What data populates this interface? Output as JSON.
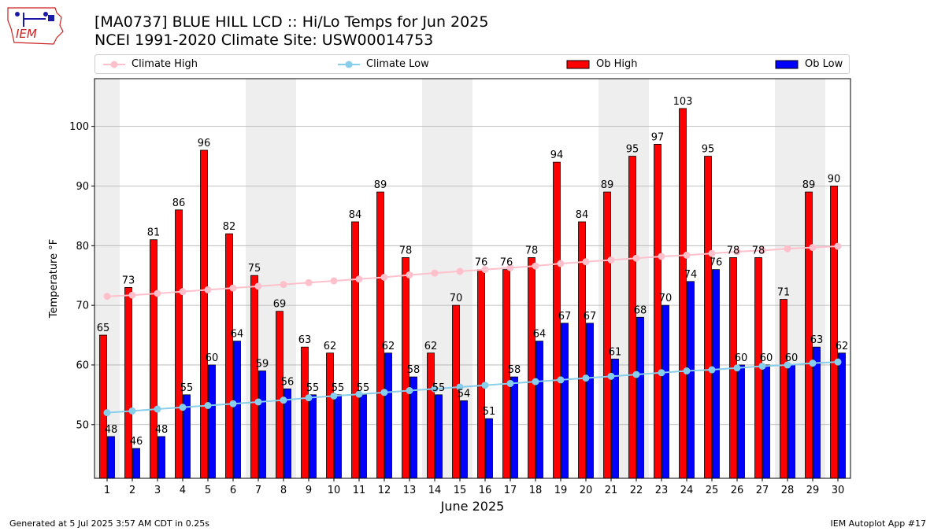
{
  "header": {
    "title_line1": "[MA0737] BLUE HILL LCD :: Hi/Lo Temps for Jun 2025",
    "title_line2": "NCEI 1991-2020 Climate Site: USW00014753"
  },
  "logo": {
    "text": "IEM"
  },
  "footer": {
    "generated": "Generated at 5 Jul 2025 3:57 AM CDT in 0.25s",
    "app": "IEM Autoplot App #17"
  },
  "legend": {
    "climate_high": "Climate High",
    "climate_low": "Climate Low",
    "ob_high": "Ob High",
    "ob_low": "Ob Low"
  },
  "colors": {
    "ob_high": "#ff0000",
    "ob_low": "#0000ff",
    "climate_high": "#ffc0cb",
    "climate_low": "#87ceeb",
    "weekend_band": "#eeeeee",
    "grid": "#b0b0b0"
  },
  "chart_data": {
    "type": "bar",
    "xlabel": "June 2025",
    "ylabel": "Temperature °F",
    "ylim": [
      41,
      108
    ],
    "yticks": [
      50,
      60,
      70,
      80,
      90,
      100
    ],
    "grid": "horizontal",
    "legend_position": "top",
    "categories": [
      "1",
      "2",
      "3",
      "4",
      "5",
      "6",
      "7",
      "8",
      "9",
      "10",
      "11",
      "12",
      "13",
      "14",
      "15",
      "16",
      "17",
      "18",
      "19",
      "20",
      "21",
      "22",
      "23",
      "24",
      "25",
      "26",
      "27",
      "28",
      "29",
      "30"
    ],
    "series": [
      {
        "name": "Ob High",
        "kind": "bar",
        "values": [
          65,
          73,
          81,
          86,
          96,
          82,
          75,
          69,
          63,
          62,
          84,
          89,
          78,
          62,
          70,
          76,
          76,
          78,
          94,
          84,
          89,
          95,
          97,
          103,
          95,
          78,
          78,
          71,
          89,
          90
        ]
      },
      {
        "name": "Ob Low",
        "kind": "bar",
        "values": [
          48,
          46,
          48,
          55,
          60,
          64,
          59,
          56,
          55,
          55,
          55,
          62,
          58,
          55,
          54,
          51,
          58,
          64,
          67,
          67,
          61,
          68,
          70,
          74,
          76,
          60,
          60,
          60,
          63,
          62
        ]
      },
      {
        "name": "Climate High",
        "kind": "line",
        "values": [
          71.5,
          71.7,
          72.0,
          72.3,
          72.6,
          72.9,
          73.2,
          73.5,
          73.8,
          74.1,
          74.4,
          74.7,
          75.1,
          75.4,
          75.7,
          76.0,
          76.3,
          76.6,
          77.0,
          77.3,
          77.6,
          77.9,
          78.2,
          78.4,
          78.7,
          79.0,
          79.2,
          79.5,
          79.7,
          79.9
        ]
      },
      {
        "name": "Climate Low",
        "kind": "line",
        "values": [
          52.0,
          52.3,
          52.6,
          52.9,
          53.2,
          53.5,
          53.8,
          54.1,
          54.5,
          54.8,
          55.1,
          55.4,
          55.7,
          56.0,
          56.3,
          56.6,
          56.9,
          57.2,
          57.5,
          57.8,
          58.1,
          58.4,
          58.7,
          59.0,
          59.2,
          59.5,
          59.8,
          60.0,
          60.3,
          60.5
        ]
      }
    ],
    "weekend_days": [
      1,
      7,
      8,
      14,
      15,
      21,
      22,
      28,
      29
    ]
  }
}
